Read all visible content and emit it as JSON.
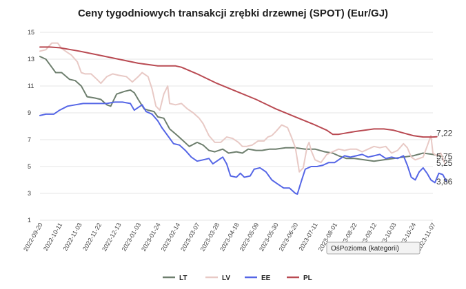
{
  "chart_data": {
    "type": "line",
    "title": "Ceny tygodniowych transakcji zrębki drzewnej (SPOT) (Eur/GJ)",
    "ylim": [
      1,
      15
    ],
    "yticks": [
      1,
      3,
      5,
      7,
      9,
      11,
      13,
      15
    ],
    "x_ticks": [
      "2022-09-20",
      "2022-10-11",
      "2022-11-03",
      "2022-11-22",
      "2022-12-13",
      "2023-01-03",
      "2023-01-24",
      "2023-02-14",
      "2023-03-07",
      "2023-03-28",
      "2023-04-18",
      "2023-05-09",
      "2023-05-30",
      "2023-06-20",
      "2023-07-11",
      "2023-08-01",
      "2023-08-22",
      "2023-09-12",
      "2023-10-03",
      "2023-10-24",
      "2023-11-07"
    ],
    "grid": true,
    "legend_position": "bottom",
    "series": [
      {
        "name": "LT",
        "color": "#6e7f6e",
        "points": [
          [
            0,
            13.2
          ],
          [
            0.3,
            13.0
          ],
          [
            0.5,
            12.6
          ],
          [
            0.8,
            12.0
          ],
          [
            1.1,
            12.0
          ],
          [
            1.5,
            11.5
          ],
          [
            1.8,
            11.4
          ],
          [
            2.1,
            11.0
          ],
          [
            2.4,
            10.2
          ],
          [
            2.8,
            10.1
          ],
          [
            3.1,
            10.0
          ],
          [
            3.4,
            9.6
          ],
          [
            3.6,
            9.5
          ],
          [
            3.9,
            10.4
          ],
          [
            4.3,
            10.6
          ],
          [
            4.6,
            10.7
          ],
          [
            4.8,
            10.5
          ],
          [
            5.0,
            10.0
          ],
          [
            5.3,
            9.3
          ],
          [
            5.5,
            9.2
          ],
          [
            5.8,
            9.1
          ],
          [
            6.0,
            8.7
          ],
          [
            6.3,
            8.6
          ],
          [
            6.6,
            7.8
          ],
          [
            7.0,
            7.3
          ],
          [
            7.3,
            6.9
          ],
          [
            7.6,
            6.5
          ],
          [
            8.0,
            6.8
          ],
          [
            8.3,
            6.6
          ],
          [
            8.6,
            6.2
          ],
          [
            8.9,
            6.1
          ],
          [
            9.3,
            6.3
          ],
          [
            9.6,
            6.0
          ],
          [
            10.0,
            6.1
          ],
          [
            10.3,
            6.0
          ],
          [
            10.6,
            6.3
          ],
          [
            11.0,
            6.2
          ],
          [
            11.3,
            6.2
          ],
          [
            11.7,
            6.3
          ],
          [
            12.0,
            6.3
          ],
          [
            12.5,
            6.4
          ],
          [
            13.0,
            6.4
          ],
          [
            13.5,
            6.3
          ],
          [
            14.0,
            6.3
          ],
          [
            14.5,
            6.1
          ],
          [
            14.9,
            6.0
          ],
          [
            15.2,
            5.8
          ],
          [
            15.6,
            5.6
          ],
          [
            16.0,
            5.6
          ],
          [
            16.5,
            5.5
          ],
          [
            17.0,
            5.4
          ],
          [
            17.5,
            5.5
          ],
          [
            18.0,
            5.6
          ],
          [
            18.5,
            5.7
          ],
          [
            19.0,
            5.8
          ],
          [
            19.5,
            6.0
          ],
          [
            20.0,
            5.9
          ],
          [
            20.3,
            5.8
          ],
          [
            20.5,
            5.75
          ]
        ]
      },
      {
        "name": "LV",
        "color": "#e8c9c5",
        "points": [
          [
            0,
            13.6
          ],
          [
            0.3,
            13.7
          ],
          [
            0.6,
            14.2
          ],
          [
            0.9,
            14.2
          ],
          [
            1.1,
            13.8
          ],
          [
            1.4,
            13.5
          ],
          [
            1.6,
            13.3
          ],
          [
            1.9,
            12.8
          ],
          [
            2.1,
            12.0
          ],
          [
            2.3,
            11.9
          ],
          [
            2.6,
            11.9
          ],
          [
            2.9,
            11.5
          ],
          [
            3.1,
            11.2
          ],
          [
            3.4,
            11.7
          ],
          [
            3.7,
            11.9
          ],
          [
            4.0,
            11.8
          ],
          [
            4.4,
            11.7
          ],
          [
            4.7,
            11.3
          ],
          [
            5.0,
            11.7
          ],
          [
            5.2,
            12.0
          ],
          [
            5.5,
            11.7
          ],
          [
            5.7,
            10.8
          ],
          [
            5.9,
            9.5
          ],
          [
            6.1,
            9.2
          ],
          [
            6.3,
            10.4
          ],
          [
            6.5,
            11.0
          ],
          [
            6.6,
            9.7
          ],
          [
            6.9,
            9.6
          ],
          [
            7.2,
            9.7
          ],
          [
            7.5,
            9.3
          ],
          [
            7.8,
            9.0
          ],
          [
            8.1,
            8.6
          ],
          [
            8.3,
            8.2
          ],
          [
            8.6,
            7.3
          ],
          [
            8.9,
            6.8
          ],
          [
            9.2,
            6.8
          ],
          [
            9.5,
            7.2
          ],
          [
            9.8,
            7.1
          ],
          [
            10.1,
            6.8
          ],
          [
            10.3,
            6.5
          ],
          [
            10.5,
            6.5
          ],
          [
            10.8,
            6.6
          ],
          [
            11.1,
            6.9
          ],
          [
            11.4,
            6.9
          ],
          [
            11.6,
            7.2
          ],
          [
            11.8,
            7.3
          ],
          [
            12.0,
            7.6
          ],
          [
            12.3,
            8.1
          ],
          [
            12.6,
            7.9
          ],
          [
            12.8,
            7.2
          ],
          [
            13.0,
            6.4
          ],
          [
            13.2,
            4.6
          ],
          [
            13.4,
            4.9
          ],
          [
            13.6,
            6.5
          ],
          [
            13.7,
            6.8
          ],
          [
            13.8,
            6.2
          ],
          [
            14.0,
            5.5
          ],
          [
            14.3,
            5.3
          ],
          [
            14.6,
            5.9
          ],
          [
            14.9,
            6.1
          ],
          [
            15.2,
            6.3
          ],
          [
            15.5,
            6.2
          ],
          [
            15.8,
            6.3
          ],
          [
            16.1,
            6.3
          ],
          [
            16.4,
            6.1
          ],
          [
            16.7,
            6.3
          ],
          [
            17.0,
            6.5
          ],
          [
            17.3,
            6.4
          ],
          [
            17.6,
            6.5
          ],
          [
            17.9,
            6.0
          ],
          [
            18.2,
            6.2
          ],
          [
            18.5,
            6.7
          ],
          [
            18.7,
            6.4
          ],
          [
            18.9,
            5.7
          ],
          [
            19.1,
            5.5
          ],
          [
            19.3,
            5.6
          ],
          [
            19.5,
            5.7
          ],
          [
            19.7,
            6.5
          ],
          [
            19.9,
            7.3
          ],
          [
            20.0,
            6.0
          ],
          [
            20.2,
            5.8
          ],
          [
            20.4,
            6.0
          ],
          [
            20.6,
            5.25
          ]
        ]
      },
      {
        "name": "EE",
        "color": "#5566e6",
        "points": [
          [
            0,
            8.8
          ],
          [
            0.3,
            8.9
          ],
          [
            0.7,
            8.9
          ],
          [
            1.0,
            9.2
          ],
          [
            1.4,
            9.5
          ],
          [
            1.8,
            9.6
          ],
          [
            2.2,
            9.7
          ],
          [
            2.6,
            9.7
          ],
          [
            3.0,
            9.7
          ],
          [
            3.4,
            9.7
          ],
          [
            3.8,
            9.8
          ],
          [
            4.2,
            9.8
          ],
          [
            4.6,
            9.7
          ],
          [
            4.8,
            9.2
          ],
          [
            5.0,
            9.4
          ],
          [
            5.2,
            9.6
          ],
          [
            5.4,
            9.1
          ],
          [
            5.7,
            8.9
          ],
          [
            6.0,
            8.4
          ],
          [
            6.2,
            7.9
          ],
          [
            6.5,
            7.3
          ],
          [
            6.8,
            6.7
          ],
          [
            7.1,
            6.6
          ],
          [
            7.4,
            6.2
          ],
          [
            7.7,
            5.7
          ],
          [
            8.0,
            5.4
          ],
          [
            8.3,
            5.5
          ],
          [
            8.6,
            5.6
          ],
          [
            8.8,
            5.2
          ],
          [
            9.0,
            5.4
          ],
          [
            9.3,
            5.7
          ],
          [
            9.5,
            5.2
          ],
          [
            9.7,
            4.3
          ],
          [
            10.0,
            4.2
          ],
          [
            10.2,
            4.5
          ],
          [
            10.4,
            4.2
          ],
          [
            10.7,
            4.3
          ],
          [
            10.9,
            4.8
          ],
          [
            11.2,
            4.9
          ],
          [
            11.5,
            4.6
          ],
          [
            11.8,
            4.0
          ],
          [
            12.1,
            3.7
          ],
          [
            12.4,
            3.4
          ],
          [
            12.7,
            3.4
          ],
          [
            13.0,
            3.0
          ],
          [
            13.1,
            2.95
          ],
          [
            13.3,
            3.9
          ],
          [
            13.5,
            4.8
          ],
          [
            13.8,
            5.0
          ],
          [
            14.1,
            5.0
          ],
          [
            14.4,
            5.1
          ],
          [
            14.7,
            5.3
          ],
          [
            15.0,
            5.3
          ],
          [
            15.3,
            5.6
          ],
          [
            15.5,
            5.8
          ],
          [
            15.8,
            5.7
          ],
          [
            16.1,
            5.8
          ],
          [
            16.4,
            5.9
          ],
          [
            16.7,
            5.7
          ],
          [
            17.0,
            5.8
          ],
          [
            17.3,
            5.9
          ],
          [
            17.6,
            5.6
          ],
          [
            17.9,
            5.7
          ],
          [
            18.2,
            5.6
          ],
          [
            18.5,
            5.8
          ],
          [
            18.7,
            5.1
          ],
          [
            18.9,
            4.2
          ],
          [
            19.1,
            4.0
          ],
          [
            19.3,
            4.6
          ],
          [
            19.5,
            4.9
          ],
          [
            19.7,
            4.5
          ],
          [
            19.9,
            4.0
          ],
          [
            20.1,
            3.8
          ],
          [
            20.3,
            4.5
          ],
          [
            20.5,
            4.4
          ],
          [
            20.7,
            3.86
          ]
        ]
      },
      {
        "name": "PL",
        "color": "#b94a52",
        "points": [
          [
            0,
            13.9
          ],
          [
            0.5,
            13.9
          ],
          [
            1.0,
            13.85
          ],
          [
            2.0,
            13.6
          ],
          [
            3.0,
            13.3
          ],
          [
            4.0,
            13.0
          ],
          [
            5.0,
            12.7
          ],
          [
            6.0,
            12.5
          ],
          [
            6.5,
            12.5
          ],
          [
            6.9,
            12.5
          ],
          [
            7.2,
            12.4
          ],
          [
            8.0,
            11.9
          ],
          [
            9.0,
            11.2
          ],
          [
            10.0,
            10.6
          ],
          [
            11.0,
            10.0
          ],
          [
            12.0,
            9.3
          ],
          [
            13.0,
            8.7
          ],
          [
            14.0,
            8.1
          ],
          [
            14.6,
            7.7
          ],
          [
            14.9,
            7.4
          ],
          [
            15.2,
            7.4
          ],
          [
            16.0,
            7.6
          ],
          [
            17.0,
            7.8
          ],
          [
            17.5,
            7.8
          ],
          [
            18.0,
            7.7
          ],
          [
            18.5,
            7.5
          ],
          [
            19.0,
            7.3
          ],
          [
            19.5,
            7.2
          ],
          [
            20.0,
            7.2
          ],
          [
            20.2,
            7.22
          ]
        ]
      }
    ],
    "end_labels": [
      {
        "text": "7,22",
        "series": "PL"
      },
      {
        "text": "5,75",
        "series": "LT"
      },
      {
        "text": "5,25",
        "series": "LV"
      },
      {
        "text": "3,86",
        "series": "EE"
      }
    ],
    "tooltip": "OśPozioma (kategorii)"
  }
}
